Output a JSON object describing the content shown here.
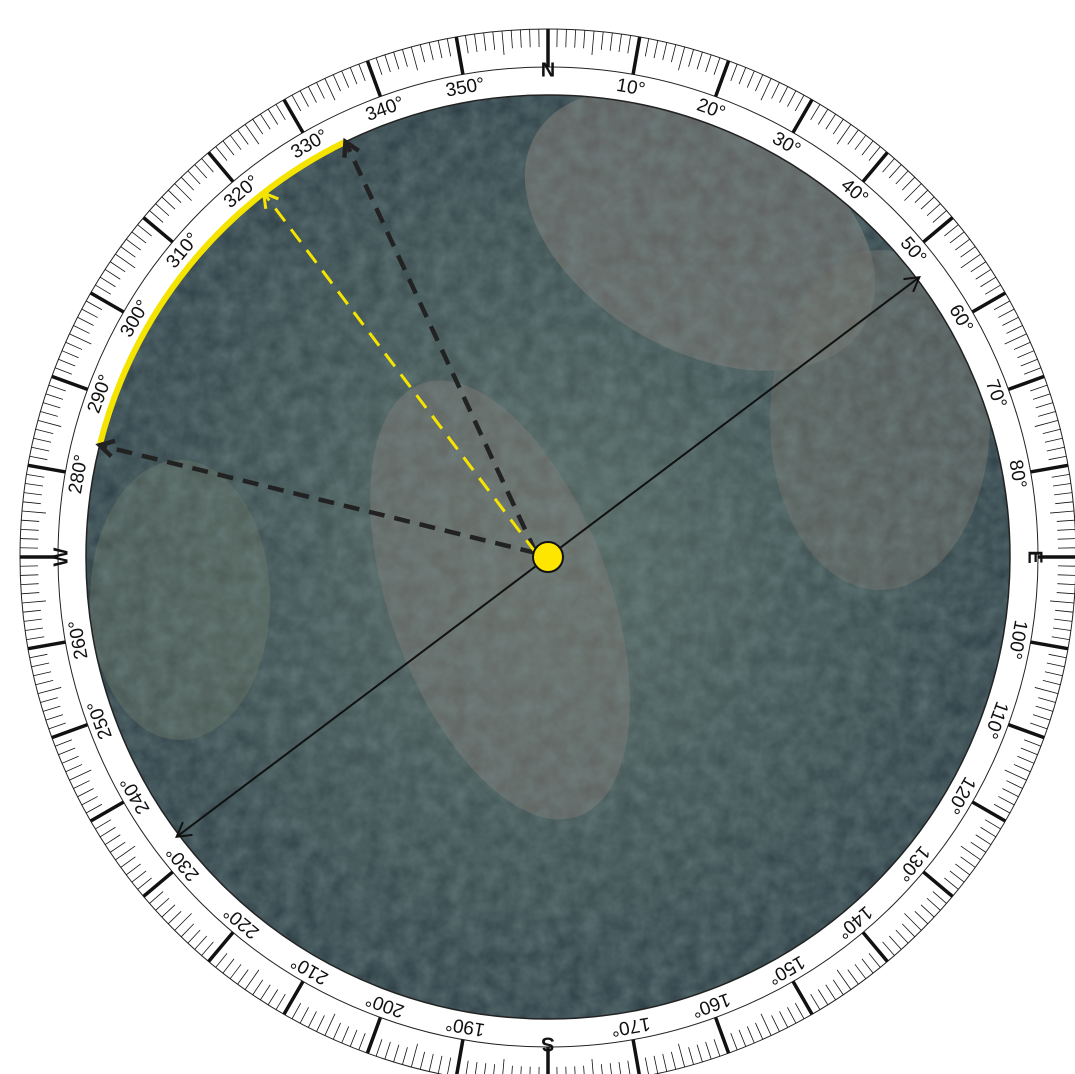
{
  "compass": {
    "cardinals": {
      "N": "N",
      "E": "E",
      "S": "S",
      "W": "W"
    },
    "degree_labels": [
      "10°",
      "20°",
      "30°",
      "40°",
      "50°",
      "60°",
      "70°",
      "80°",
      "100°",
      "110°",
      "120°",
      "130°",
      "140°",
      "150°",
      "160°",
      "170°",
      "190°",
      "200°",
      "210°",
      "220°",
      "230°",
      "240°",
      "250°",
      "260°",
      "280°",
      "290°",
      "300°",
      "310°",
      "320°",
      "330°",
      "340°",
      "350°"
    ]
  }
}
